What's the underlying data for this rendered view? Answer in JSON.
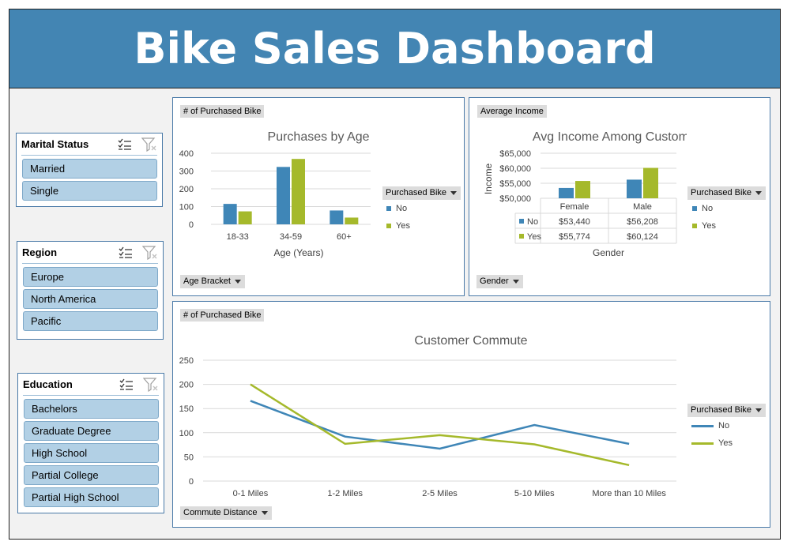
{
  "banner": {
    "title": "Bike Sales Dashboard"
  },
  "colors": {
    "banner": "#4385b3",
    "no": "#3f86b7",
    "yes": "#a5b92b",
    "slicer_item": "#b2d0e5"
  },
  "slicers": [
    {
      "title": "Marital Status",
      "items": [
        "Married",
        "Single"
      ]
    },
    {
      "title": "Region",
      "items": [
        "Europe",
        "North America",
        "Pacific"
      ]
    },
    {
      "title": "Education",
      "items": [
        "Bachelors",
        "Graduate Degree",
        "High School",
        "Partial College",
        "Partial High School"
      ]
    }
  ],
  "legend": {
    "field": "Purchased Bike",
    "no": "No",
    "yes": "Yes"
  },
  "age_chart": {
    "value_button": "# of Purchased Bike",
    "axis_button": "Age Bracket",
    "chart_data": {
      "type": "bar",
      "title": "Purchases by Age",
      "xlabel": "Age (Years)",
      "ylabel": "",
      "categories": [
        "18-33",
        "34-59",
        "60+"
      ],
      "series": [
        {
          "name": "No",
          "values": [
            115,
            323,
            78
          ]
        },
        {
          "name": "Yes",
          "values": [
            73,
            368,
            38
          ]
        }
      ],
      "ylim": [
        0,
        400
      ],
      "yticks": [
        "0",
        "100",
        "200",
        "300",
        "400"
      ],
      "grid": true,
      "legend": "right"
    }
  },
  "income_chart": {
    "value_button": "Average Income",
    "axis_button": "Gender",
    "chart_data": {
      "type": "bar",
      "title": "Avg Income Among Customers",
      "xlabel": "Gender",
      "ylabel": "Income",
      "categories": [
        "Female",
        "Male"
      ],
      "series": [
        {
          "name": "No",
          "values": [
            53440,
            56208
          ]
        },
        {
          "name": "Yes",
          "values": [
            55774,
            60124
          ]
        }
      ],
      "ylim": [
        50000,
        65000
      ],
      "yticks": [
        "$50,000",
        "$55,000",
        "$60,000",
        "$65,000"
      ],
      "data_table": [
        {
          "label": "No",
          "values": [
            "$53,440",
            "$56,208"
          ]
        },
        {
          "label": "Yes",
          "values": [
            "$55,774",
            "$60,124"
          ]
        }
      ],
      "grid": true,
      "legend": "right"
    }
  },
  "commute_chart": {
    "value_button": "# of Purchased Bike",
    "axis_button": "Commute Distance",
    "chart_data": {
      "type": "line",
      "title": "Customer Commute",
      "xlabel": "",
      "ylabel": "",
      "categories": [
        "0-1 Miles",
        "1-2 Miles",
        "2-5 Miles",
        "5-10 Miles",
        "More than 10 Miles"
      ],
      "series": [
        {
          "name": "No",
          "values": [
            166,
            92,
            67,
            116,
            77
          ]
        },
        {
          "name": "Yes",
          "values": [
            200,
            77,
            95,
            76,
            33
          ]
        }
      ],
      "ylim": [
        0,
        250
      ],
      "yticks": [
        "0",
        "50",
        "100",
        "150",
        "200",
        "250"
      ],
      "grid": true,
      "legend": "right"
    }
  }
}
